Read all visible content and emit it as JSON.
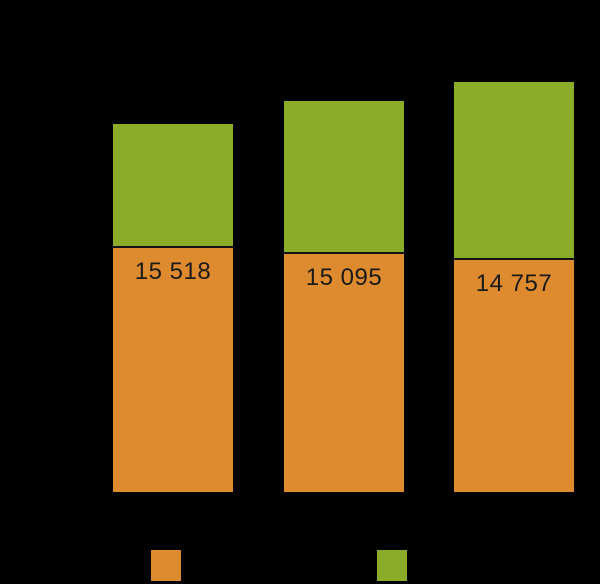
{
  "chart_data": {
    "type": "bar",
    "stacked": true,
    "orientation": "vertical",
    "title": "",
    "xlabel": "",
    "ylabel": "",
    "grid": false,
    "categories": [
      "",
      "",
      ""
    ],
    "series": [
      {
        "name": "orange-bottom-segment",
        "color": "#DE8A2F",
        "values": [
          15518,
          15095,
          14757
        ],
        "data_labels": [
          "15 518",
          "15 095",
          "14 757"
        ]
      },
      {
        "name": "green-top-segment",
        "color": "#8AAC29",
        "values": [
          7690,
          9510,
          11090
        ],
        "values_estimated_from_pixels": true,
        "data_labels": [
          "",
          "",
          ""
        ]
      }
    ],
    "colors": {
      "background": "#000000",
      "orange_series": "#DE8A2F",
      "green_series": "#8AAC29",
      "data_label_text": "#1A1A1A",
      "segment_divider_line": "#111111"
    },
    "legend": {
      "position": "bottom",
      "entries": [
        {
          "label": "",
          "swatch_color": "#DE8A2F"
        },
        {
          "label": "",
          "swatch_color": "#8AAC29"
        }
      ]
    }
  }
}
